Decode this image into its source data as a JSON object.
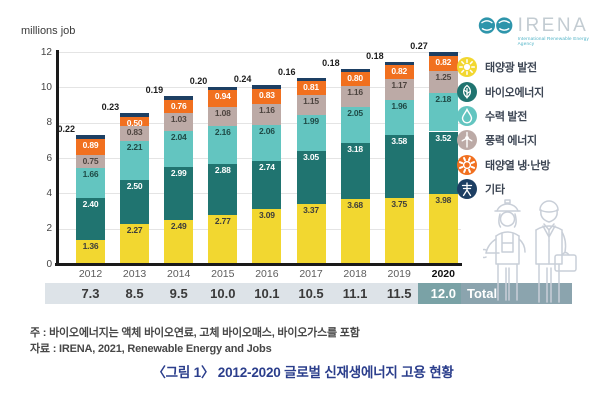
{
  "axis_title": "millions job",
  "logo": {
    "brand": "IRENA",
    "subtitle": "International Renewable Energy Agency",
    "mark_color": "#2E95AB"
  },
  "legend": {
    "items": [
      {
        "label": "태양광 발전",
        "icon": "sun-icon",
        "color": "#F2D730"
      },
      {
        "label": "바이오에너지",
        "icon": "leaf-icon",
        "color": "#207470"
      },
      {
        "label": "수력 발전",
        "icon": "water-drop-icon",
        "color": "#63C5C0"
      },
      {
        "label": "풍력 에너지",
        "icon": "wind-turbine-icon",
        "color": "#BCAAA6"
      },
      {
        "label": "태양열 냉·난방",
        "icon": "sun-rays-icon",
        "color": "#F1701F"
      },
      {
        "label": "기타",
        "icon": "transmission-tower-icon",
        "color": "#1D3F63"
      }
    ]
  },
  "chart_data": {
    "type": "bar",
    "stacked": true,
    "title": "",
    "xlabel": "",
    "ylabel": "millions job",
    "ylim": [
      0,
      12
    ],
    "yticks": [
      0,
      2,
      4,
      6,
      8,
      10,
      12
    ],
    "grid": true,
    "legend_position": "right",
    "categories": [
      "2012",
      "2013",
      "2014",
      "2015",
      "2016",
      "2017",
      "2018",
      "2019",
      "2020"
    ],
    "series": [
      {
        "name": "태양광 발전",
        "color": "#F2D730",
        "label_color": "#3c3c3c",
        "values": [
          1.36,
          2.27,
          2.49,
          2.77,
          3.09,
          3.37,
          3.68,
          3.75,
          3.98
        ]
      },
      {
        "name": "바이오에너지",
        "color": "#207470",
        "label_color": "#ffffff",
        "values": [
          2.4,
          2.5,
          2.99,
          2.88,
          2.74,
          3.05,
          3.18,
          3.58,
          3.52
        ]
      },
      {
        "name": "수력 발전",
        "color": "#63C5C0",
        "label_color": "#1f4a46",
        "values": [
          1.66,
          2.21,
          2.04,
          2.16,
          2.06,
          1.99,
          2.05,
          1.96,
          2.18
        ]
      },
      {
        "name": "풍력 에너지",
        "color": "#BCAAA6",
        "label_color": "#4d443f",
        "values": [
          0.75,
          0.83,
          1.03,
          1.08,
          1.16,
          1.15,
          1.16,
          1.17,
          1.25
        ]
      },
      {
        "name": "태양열 냉·난방",
        "color": "#F1701F",
        "label_color": "#ffffff",
        "values": [
          0.89,
          0.5,
          0.76,
          0.94,
          0.83,
          0.81,
          0.8,
          0.82,
          0.82
        ]
      },
      {
        "name": "기타",
        "color": "#1D3F63",
        "label_color": "#1c1c1c",
        "values": [
          0.22,
          0.23,
          0.19,
          0.2,
          0.24,
          0.16,
          0.18,
          0.18,
          0.27
        ]
      }
    ],
    "totals": {
      "label": "Total",
      "values": [
        7.3,
        8.5,
        9.5,
        10.0,
        10.1,
        10.5,
        11.1,
        11.5,
        12.0
      ],
      "highlight_index": 8,
      "highlight_cell_color": "#7AA2A6",
      "highlight_block_color": "#8BA4AE",
      "strip_color": "#dde3e8"
    }
  },
  "notes": {
    "note": "주 : 바이오에너지는 액체 바이오연료, 고체 바이오매스, 바이오가스를 포함",
    "source": "자료 : IRENA, 2021, Renewable Energy and Jobs",
    "caption": "〈그림 1〉 2012-2020 글로벌 신재생에너지 고용 현황"
  }
}
